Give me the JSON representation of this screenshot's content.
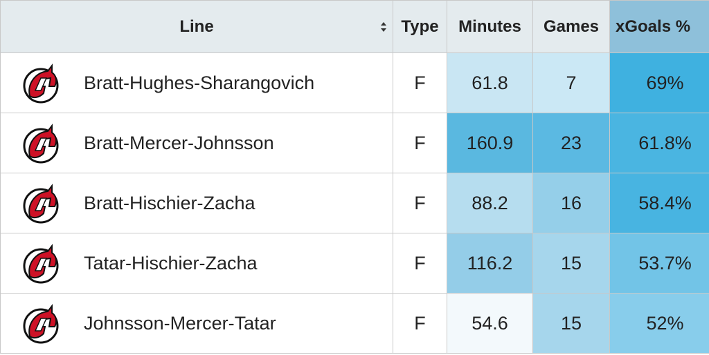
{
  "table": {
    "header": [
      "Line",
      "Type",
      "Minutes",
      "Games",
      "xGoals %"
    ],
    "rows": [
      [
        "Bratt-Hughes-Sharangovich",
        "F",
        "61.8",
        "7",
        "69%"
      ],
      [
        "Bratt-Mercer-Johnsson",
        "F",
        "160.9",
        "23",
        "61.8%"
      ],
      [
        "Bratt-Hischier-Zacha",
        "F",
        "88.2",
        "16",
        "58.4%"
      ],
      [
        "Tatar-Hischier-Zacha",
        "F",
        "116.2",
        "15",
        "53.7%"
      ],
      [
        "Johnsson-Mercer-Tatar",
        "F",
        "54.6",
        "15",
        "52%"
      ]
    ]
  }
}
